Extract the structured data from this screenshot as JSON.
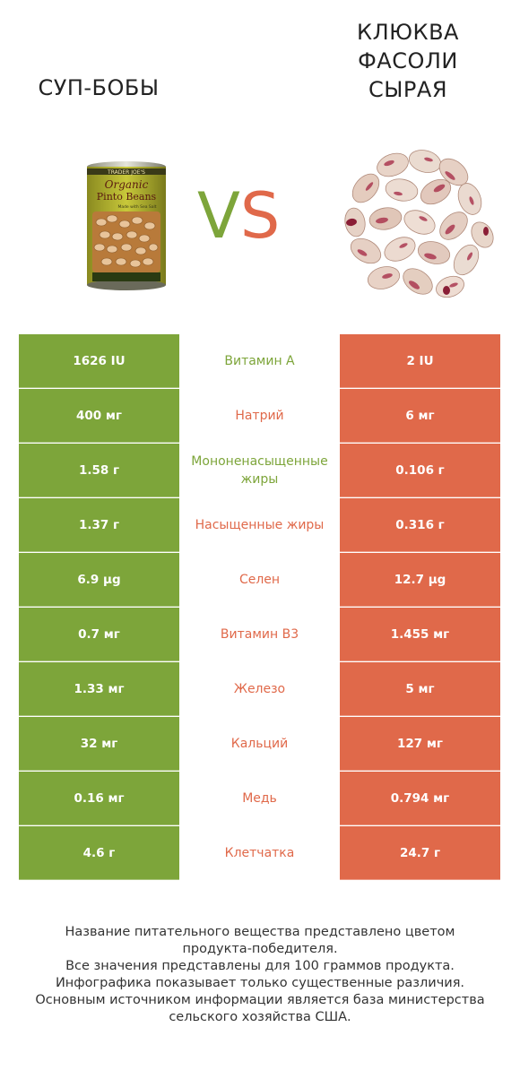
{
  "products": {
    "left": {
      "title": "СУП-БОБЫ",
      "color": "#7da53a",
      "image_icon": "can-of-pinto-beans"
    },
    "right": {
      "title": "КЛЮКВА ФАСОЛИ СЫРАЯ",
      "color": "#e0694a",
      "image_icon": "pile-of-cranberry-beans"
    }
  },
  "can_label": {
    "brand": "TRADER JOE'S",
    "line1": "Organic",
    "line2": "Pinto Beans",
    "line3": "Made with Sea Salt"
  },
  "vs": {
    "v": "V",
    "s": "S"
  },
  "rows": [
    {
      "left": "1626 IU",
      "name": "Витамин A",
      "right": "2 IU",
      "winner": "left"
    },
    {
      "left": "400 мг",
      "name": "Натрий",
      "right": "6 мг",
      "winner": "right"
    },
    {
      "left": "1.58 г",
      "name": "Мононенасыщенные жиры",
      "right": "0.106 г",
      "winner": "left"
    },
    {
      "left": "1.37 г",
      "name": "Насыщенные жиры",
      "right": "0.316 г",
      "winner": "right"
    },
    {
      "left": "6.9 µg",
      "name": "Селен",
      "right": "12.7 µg",
      "winner": "right"
    },
    {
      "left": "0.7 мг",
      "name": "Витамин B3",
      "right": "1.455 мг",
      "winner": "right"
    },
    {
      "left": "1.33 мг",
      "name": "Железо",
      "right": "5 мг",
      "winner": "right"
    },
    {
      "left": "32 мг",
      "name": "Кальций",
      "right": "127 мг",
      "winner": "right"
    },
    {
      "left": "0.16 мг",
      "name": "Медь",
      "right": "0.794 мг",
      "winner": "right"
    },
    {
      "left": "4.6 г",
      "name": "Клетчатка",
      "right": "24.7 г",
      "winner": "right"
    }
  ],
  "footer": [
    "Название питательного вещества представлено цветом",
    "продукта-победителя.",
    "Все значения представлены для 100 граммов продукта.",
    "Инфографика показывает только существенные различия.",
    "Основным источником информации является база министерства",
    "сельского хозяйства США."
  ]
}
